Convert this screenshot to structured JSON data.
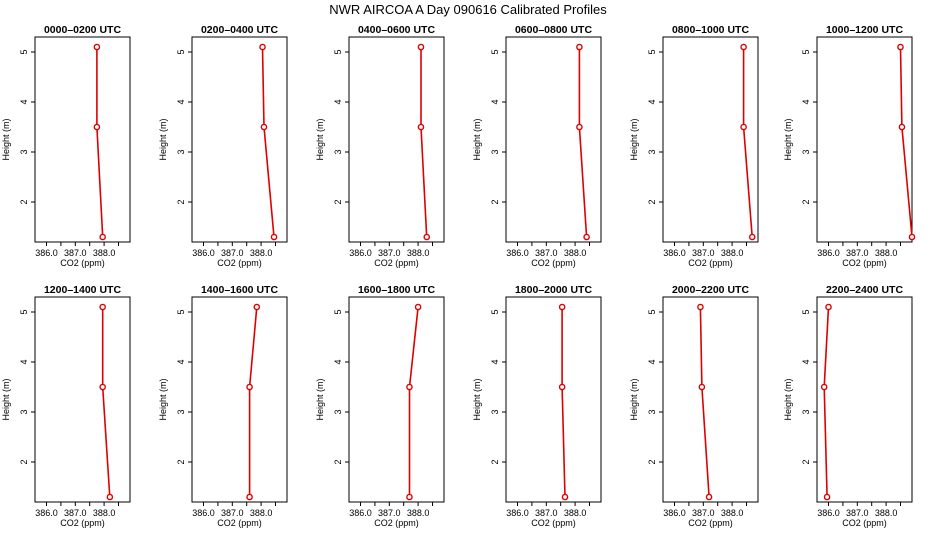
{
  "figure": {
    "title": "NWR AIRCOA A  Day 090616  Calibrated Profiles"
  },
  "colors": {
    "profile": "#dd0000",
    "axis": "#000000"
  },
  "chart_data": [
    {
      "type": "line",
      "title": "0000–0200 UTC",
      "xlabel": "CO2 (ppm)",
      "ylabel": "Height (m)",
      "xlim": [
        385.6,
        388.9
      ],
      "ylim": [
        1.2,
        5.3
      ],
      "xticks": [
        "386.0",
        "387.0",
        "388.0"
      ],
      "yticks": [
        "2",
        "3",
        "4",
        "5"
      ],
      "grid": false,
      "x": [
        387.75,
        387.75,
        387.95
      ],
      "y": [
        5.1,
        3.5,
        1.3
      ]
    },
    {
      "type": "line",
      "title": "0200–0400 UTC",
      "xlabel": "CO2 (ppm)",
      "ylabel": "Height (m)",
      "xlim": [
        385.6,
        388.9
      ],
      "ylim": [
        1.2,
        5.3
      ],
      "xticks": [
        "386.0",
        "387.0",
        "388.0"
      ],
      "yticks": [
        "2",
        "3",
        "4",
        "5"
      ],
      "grid": false,
      "x": [
        388.05,
        388.1,
        388.45
      ],
      "y": [
        5.1,
        3.5,
        1.3
      ]
    },
    {
      "type": "line",
      "title": "0400–0600 UTC",
      "xlabel": "CO2 (ppm)",
      "ylabel": "Height (m)",
      "xlim": [
        385.6,
        388.9
      ],
      "ylim": [
        1.2,
        5.3
      ],
      "xticks": [
        "386.0",
        "387.0",
        "388.0"
      ],
      "yticks": [
        "2",
        "3",
        "4",
        "5"
      ],
      "grid": false,
      "x": [
        388.1,
        388.1,
        388.3
      ],
      "y": [
        5.1,
        3.5,
        1.3
      ]
    },
    {
      "type": "line",
      "title": "0600–0800 UTC",
      "xlabel": "CO2 (ppm)",
      "ylabel": "Height (m)",
      "xlim": [
        385.6,
        388.9
      ],
      "ylim": [
        1.2,
        5.3
      ],
      "xticks": [
        "386.0",
        "387.0",
        "388.0"
      ],
      "yticks": [
        "2",
        "3",
        "4",
        "5"
      ],
      "grid": false,
      "x": [
        388.15,
        388.15,
        388.4
      ],
      "y": [
        5.1,
        3.5,
        1.3
      ]
    },
    {
      "type": "line",
      "title": "0800–1000 UTC",
      "xlabel": "CO2 (ppm)",
      "ylabel": "Height (m)",
      "xlim": [
        385.6,
        388.9
      ],
      "ylim": [
        1.2,
        5.3
      ],
      "xticks": [
        "386.0",
        "387.0",
        "388.0"
      ],
      "yticks": [
        "2",
        "3",
        "4",
        "5"
      ],
      "grid": false,
      "x": [
        388.4,
        388.4,
        388.7
      ],
      "y": [
        5.1,
        3.5,
        1.3
      ]
    },
    {
      "type": "line",
      "title": "1000–1200 UTC",
      "xlabel": "CO2 (ppm)",
      "ylabel": "Height (m)",
      "xlim": [
        385.6,
        388.9
      ],
      "ylim": [
        1.2,
        5.3
      ],
      "xticks": [
        "386.0",
        "387.0",
        "388.0"
      ],
      "yticks": [
        "2",
        "3",
        "4",
        "5"
      ],
      "grid": false,
      "x": [
        388.5,
        388.55,
        388.9
      ],
      "y": [
        5.1,
        3.5,
        1.3
      ]
    },
    {
      "type": "line",
      "title": "1200–1400 UTC",
      "xlabel": "CO2 (ppm)",
      "ylabel": "Height (m)",
      "xlim": [
        385.6,
        388.9
      ],
      "ylim": [
        1.2,
        5.3
      ],
      "xticks": [
        "386.0",
        "387.0",
        "388.0"
      ],
      "yticks": [
        "2",
        "3",
        "4",
        "5"
      ],
      "grid": false,
      "x": [
        387.95,
        387.95,
        388.2
      ],
      "y": [
        5.1,
        3.5,
        1.3
      ]
    },
    {
      "type": "line",
      "title": "1400–1600 UTC",
      "xlabel": "CO2 (ppm)",
      "ylabel": "Height (m)",
      "xlim": [
        385.6,
        388.9
      ],
      "ylim": [
        1.2,
        5.3
      ],
      "xticks": [
        "386.0",
        "387.0",
        "388.0"
      ],
      "yticks": [
        "2",
        "3",
        "4",
        "5"
      ],
      "grid": false,
      "x": [
        387.85,
        387.6,
        387.6
      ],
      "y": [
        5.1,
        3.5,
        1.3
      ]
    },
    {
      "type": "line",
      "title": "1600–1800 UTC",
      "xlabel": "CO2 (ppm)",
      "ylabel": "Height (m)",
      "xlim": [
        385.6,
        388.9
      ],
      "ylim": [
        1.2,
        5.3
      ],
      "xticks": [
        "386.0",
        "387.0",
        "388.0"
      ],
      "yticks": [
        "2",
        "3",
        "4",
        "5"
      ],
      "grid": false,
      "x": [
        388.0,
        387.7,
        387.7
      ],
      "y": [
        5.1,
        3.5,
        1.3
      ]
    },
    {
      "type": "line",
      "title": "1800–2000 UTC",
      "xlabel": "CO2 (ppm)",
      "ylabel": "Height (m)",
      "xlim": [
        385.6,
        388.9
      ],
      "ylim": [
        1.2,
        5.3
      ],
      "xticks": [
        "386.0",
        "387.0",
        "388.0"
      ],
      "yticks": [
        "2",
        "3",
        "4",
        "5"
      ],
      "grid": false,
      "x": [
        387.55,
        387.55,
        387.65
      ],
      "y": [
        5.1,
        3.5,
        1.3
      ]
    },
    {
      "type": "line",
      "title": "2000–2200 UTC",
      "xlabel": "CO2 (ppm)",
      "ylabel": "Height (m)",
      "xlim": [
        385.6,
        388.9
      ],
      "ylim": [
        1.2,
        5.3
      ],
      "xticks": [
        "386.0",
        "387.0",
        "388.0"
      ],
      "yticks": [
        "2",
        "3",
        "4",
        "5"
      ],
      "grid": false,
      "x": [
        386.9,
        386.95,
        387.2
      ],
      "y": [
        5.1,
        3.5,
        1.3
      ]
    },
    {
      "type": "line",
      "title": "2200–2400 UTC",
      "xlabel": "CO2 (ppm)",
      "ylabel": "Height (m)",
      "xlim": [
        385.6,
        388.9
      ],
      "ylim": [
        1.2,
        5.3
      ],
      "xticks": [
        "386.0",
        "387.0",
        "388.0"
      ],
      "yticks": [
        "2",
        "3",
        "4",
        "5"
      ],
      "grid": false,
      "x": [
        386.0,
        385.85,
        385.95
      ],
      "y": [
        5.1,
        3.5,
        1.3
      ]
    }
  ]
}
